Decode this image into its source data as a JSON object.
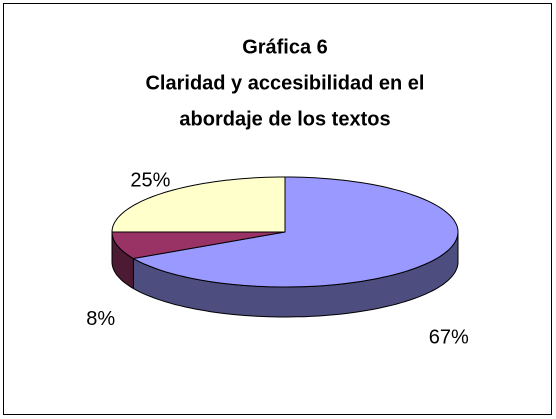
{
  "chart_data": {
    "type": "pie3d",
    "title_lines": [
      "Gráfica 6",
      "Claridad y accesibilidad en el",
      "abordaje de los textos"
    ],
    "values": [
      67,
      8,
      25
    ],
    "value_labels": [
      "67%",
      "8%",
      "25%"
    ],
    "colors": [
      "#9999ff",
      "#993366",
      "#ffffcc"
    ]
  }
}
